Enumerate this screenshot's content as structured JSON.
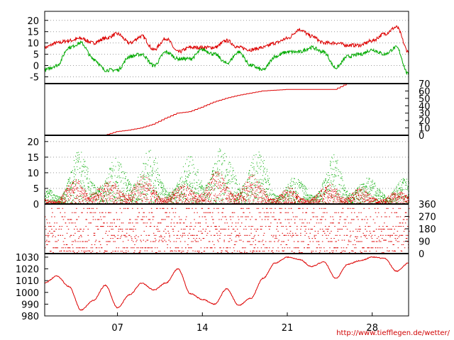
{
  "credit": "http://www.tiefflegen.de/wetter/",
  "colors": {
    "red": "#dd0000",
    "green": "#00aa00",
    "grid": "#9a9a9a",
    "axis": "#000000"
  },
  "chart_data": [
    {
      "type": "line",
      "panel": "temperature",
      "ylim": [
        -8,
        24
      ],
      "yticks": [
        -5,
        0,
        5,
        10,
        15,
        20
      ],
      "ytick_labels": [
        "-5",
        "0",
        "5",
        "10",
        "15",
        "20"
      ],
      "grid": true,
      "x": [
        1,
        2,
        3,
        4,
        5,
        6,
        7,
        8,
        9,
        10,
        11,
        12,
        13,
        14,
        15,
        16,
        17,
        18,
        19,
        20,
        21,
        22,
        23,
        24,
        25,
        26,
        27,
        28,
        29,
        30,
        31
      ],
      "series": [
        {
          "color": "#dd0000",
          "values": [
            8,
            10,
            11,
            12,
            10,
            12,
            14,
            10,
            13,
            7,
            12,
            6,
            8,
            8,
            8,
            11,
            8,
            7,
            8,
            10,
            12,
            16,
            13,
            10,
            10,
            9,
            9,
            11,
            14,
            17,
            6
          ]
        },
        {
          "color": "#00aa00",
          "values": [
            -2,
            0,
            8,
            10,
            3,
            -2,
            -2,
            4,
            5,
            0,
            6,
            3,
            3,
            7,
            5,
            1,
            6,
            0,
            -2,
            4,
            6,
            6,
            8,
            6,
            -1,
            4,
            5,
            7,
            5,
            8,
            -4
          ]
        }
      ]
    },
    {
      "type": "line",
      "panel": "cumulative",
      "ylim": [
        0,
        70
      ],
      "yticks": [
        0,
        10,
        20,
        30,
        40,
        50,
        60,
        70
      ],
      "ytick_labels": [
        "0",
        "10",
        "20",
        "30",
        "40",
        "50",
        "60",
        "70"
      ],
      "grid": false,
      "x": [
        1,
        2,
        3,
        4,
        5,
        6,
        7,
        8,
        9,
        10,
        11,
        12,
        13,
        14,
        15,
        16,
        17,
        18,
        19,
        20,
        21,
        22,
        23,
        24,
        25,
        26,
        27,
        28,
        29,
        30,
        31
      ],
      "series": [
        {
          "color": "#dd0000",
          "values": [
            0,
            0,
            0,
            0,
            0,
            0,
            5,
            7,
            10,
            15,
            23,
            30,
            32,
            38,
            45,
            50,
            54,
            57,
            60,
            61,
            62,
            62,
            62,
            62,
            62,
            70,
            70,
            70,
            70,
            70,
            70
          ]
        }
      ]
    },
    {
      "type": "scatter",
      "panel": "wind_speed",
      "ylim": [
        0,
        22
      ],
      "yticks": [
        0,
        5,
        10,
        15,
        20
      ],
      "ytick_labels": [
        "0",
        "5",
        "10",
        "15",
        "20"
      ],
      "grid": true,
      "x": [
        1,
        2,
        3,
        4,
        5,
        6,
        7,
        8,
        9,
        10,
        11,
        12,
        13,
        14,
        15,
        16,
        17,
        18,
        19,
        20,
        21,
        22,
        23,
        24,
        25,
        26,
        27,
        28,
        29,
        30,
        31
      ],
      "series": [
        {
          "color": "#00aa00",
          "values": [
            4,
            6,
            10,
            13,
            15,
            9,
            11,
            16,
            14,
            12,
            10,
            8,
            12,
            16,
            15,
            12,
            15,
            14,
            12,
            7,
            7,
            6,
            7,
            8,
            12,
            9,
            7,
            6,
            7,
            6,
            6
          ]
        },
        {
          "color": "#dd0000",
          "values": [
            2,
            3,
            5,
            7,
            8,
            5,
            6,
            8,
            7,
            6,
            5,
            4,
            6,
            8,
            8,
            7,
            8,
            7,
            6,
            4,
            4,
            3,
            4,
            4,
            6,
            5,
            4,
            3,
            4,
            3,
            3
          ]
        }
      ]
    },
    {
      "type": "scatter",
      "panel": "wind_direction",
      "ylim": [
        0,
        360
      ],
      "yticks": [
        0,
        90,
        180,
        270,
        360
      ],
      "ytick_labels": [
        "0",
        "90",
        "180",
        "270",
        "360"
      ],
      "grid": false,
      "x": [
        1,
        2,
        3,
        4,
        5,
        6,
        7,
        8,
        9,
        10,
        11,
        12,
        13,
        14,
        15,
        16,
        17,
        18,
        19,
        20,
        21,
        22,
        23,
        24,
        25,
        26,
        27,
        28,
        29,
        30,
        31
      ],
      "series": [
        {
          "color": "#dd0000",
          "values": [
            230,
            250,
            240,
            200,
            180,
            220,
            260,
            240,
            210,
            190,
            230,
            250,
            240,
            200,
            220,
            260,
            250,
            230,
            200,
            210,
            230,
            240,
            220,
            250,
            260,
            230,
            210,
            200,
            230,
            250,
            240
          ]
        }
      ]
    },
    {
      "type": "line",
      "panel": "pressure",
      "ylim": [
        980,
        1033
      ],
      "yticks": [
        980,
        990,
        1000,
        1010,
        1020,
        1030
      ],
      "ytick_labels": [
        "980",
        "990",
        "1000",
        "1010",
        "1020",
        "1030"
      ],
      "xticks": [
        7,
        14,
        21,
        28
      ],
      "xtick_labels": [
        "07",
        "14",
        "21",
        "28"
      ],
      "grid": false,
      "x": [
        1,
        2,
        3,
        4,
        5,
        6,
        7,
        8,
        9,
        10,
        11,
        12,
        13,
        14,
        15,
        16,
        17,
        18,
        19,
        20,
        21,
        22,
        23,
        24,
        25,
        26,
        27,
        28,
        29,
        30,
        31
      ],
      "series": [
        {
          "color": "#dd0000",
          "values": [
            1008,
            1014,
            1005,
            985,
            993,
            1006,
            987,
            998,
            1008,
            1002,
            1008,
            1020,
            999,
            994,
            990,
            1003,
            989,
            995,
            1012,
            1025,
            1030,
            1028,
            1022,
            1026,
            1012,
            1024,
            1027,
            1030,
            1029,
            1018,
            1025
          ]
        }
      ]
    }
  ]
}
